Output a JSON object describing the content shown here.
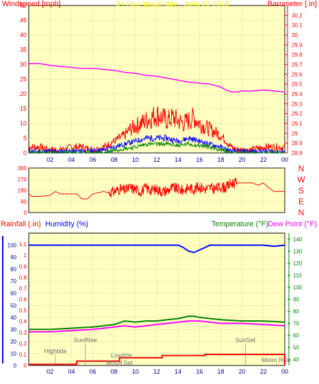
{
  "colors": {
    "plot_bg": "#ffffc0",
    "grid": "#808080",
    "wind_speed": "#ff0000",
    "wind_avg": "#0000ff",
    "wind_low": "#008000",
    "barometer": "#ff00ff",
    "direction": "#ff0000",
    "humidity": "#0000ff",
    "temperature": "#008000",
    "dewpoint": "#ff00ff",
    "rainfall": "#ff0000",
    "event_text": "#707070",
    "title_text": "#ffff00"
  },
  "header": {
    "windspeed_label": "Windspeed [mph]",
    "title": "24 hour graph day , June 20 2019",
    "barometer_label": "Barometer [.in]"
  },
  "compass": {
    "n1": "N",
    "w": "W",
    "s": "S",
    "e": "E",
    "n2": "N"
  },
  "bottom_header": {
    "rainfall_label": "Rainfall (.in)",
    "humidity_label": "Humidity (%)",
    "temperature_label": "Temperature (°F)",
    "dewpoint_label": "Dew Point (°F)"
  },
  "chart_data": [
    {
      "type": "line",
      "title": "24 hour graph day , June 20 2019",
      "ylabel": "Windspeed [mph]",
      "y2label": "Barometer [.in]",
      "ylim": [
        0,
        50
      ],
      "y2lim": [
        28.8,
        30.3
      ],
      "yticks": [
        "0",
        "5",
        "10",
        "15",
        "20",
        "25",
        "30",
        "35",
        "40",
        "45",
        "50"
      ],
      "y2ticks": [
        "28.8",
        "28.9",
        "29",
        "29.1",
        "29.2",
        "29.3",
        "29.4",
        "29.5",
        "29.6",
        "29.7",
        "29.8",
        "29.9",
        "30",
        "30.1",
        "30.2"
      ],
      "xticks": [
        "02",
        "04",
        "06",
        "08",
        "10",
        "12",
        "14",
        "16",
        "18",
        "20",
        "22",
        "00"
      ],
      "x_hours": [
        0,
        24
      ],
      "series": [
        {
          "name": "Barometer",
          "axis": "right",
          "x": [
            0,
            1,
            2,
            3,
            4,
            5,
            6,
            7,
            8,
            9,
            10,
            11,
            12,
            13,
            14,
            15,
            16,
            17,
            18,
            18.5,
            19,
            19.5,
            20,
            21,
            22,
            23,
            24
          ],
          "values": [
            29.71,
            29.71,
            29.69,
            29.68,
            29.67,
            29.66,
            29.66,
            29.65,
            29.64,
            29.62,
            29.61,
            29.59,
            29.58,
            29.56,
            29.54,
            29.52,
            29.51,
            29.5,
            29.47,
            29.44,
            29.42,
            29.42,
            29.43,
            29.43,
            29.44,
            29.43,
            29.42
          ]
        },
        {
          "name": "Wind speed",
          "x": [
            0,
            1,
            2,
            3,
            4,
            5,
            6,
            7,
            7.5,
            8,
            8.5,
            9,
            9.5,
            10,
            10.5,
            11,
            11.5,
            12,
            12.5,
            13,
            13.5,
            14,
            14.5,
            15,
            15.5,
            16,
            16.5,
            17,
            17.5,
            18,
            18.5,
            19,
            19.5,
            20,
            21,
            22,
            23,
            24
          ],
          "values": [
            2,
            2,
            1,
            1,
            2,
            2,
            1,
            2,
            3,
            4,
            5,
            6,
            8,
            9,
            10,
            11,
            12,
            13,
            12,
            11,
            12,
            11,
            10,
            11,
            12,
            10,
            9,
            8,
            7,
            6,
            4,
            2,
            1,
            1,
            1,
            2,
            2,
            2
          ]
        },
        {
          "name": "Wind average",
          "x": [
            0,
            4,
            7,
            8,
            9,
            10,
            11,
            12,
            13,
            14,
            15,
            16,
            17,
            18,
            19,
            20,
            24
          ],
          "values": [
            0.5,
            0.5,
            1,
            2,
            3,
            4,
            5,
            5,
            5,
            4,
            5,
            4,
            3,
            2,
            0.5,
            0.5,
            0.5
          ]
        },
        {
          "name": "Wind low",
          "x": [
            0,
            7,
            8,
            9,
            10,
            11,
            12,
            13,
            14,
            15,
            16,
            17,
            18,
            19,
            24
          ],
          "values": [
            0,
            0,
            1,
            1.5,
            2,
            3,
            3,
            3,
            2.5,
            3,
            2.5,
            2,
            1,
            0,
            0
          ]
        }
      ]
    },
    {
      "type": "line",
      "yticks": [
        "360",
        "270",
        "180",
        "90",
        "0"
      ],
      "ylim": [
        0,
        360
      ],
      "xticks": [
        "02",
        "04",
        "06",
        "08",
        "10",
        "12",
        "14",
        "16",
        "18",
        "20",
        "22",
        "00"
      ],
      "x_hours": [
        0,
        24
      ],
      "series": [
        {
          "name": "Wind direction",
          "x": [
            0,
            0.3,
            1,
            2,
            2.5,
            3,
            4,
            4.5,
            5,
            5.5,
            6,
            6.5,
            7,
            7.5,
            8,
            8.5,
            9,
            9.5,
            10,
            10.5,
            11,
            11.5,
            12,
            12.5,
            13,
            13.5,
            14,
            14.5,
            15,
            15.5,
            16,
            16.5,
            17,
            17.5,
            18,
            18.5,
            19,
            19.5,
            20,
            21,
            21.5,
            22,
            22.5,
            23,
            24
          ],
          "values": [
            150,
            130,
            130,
            140,
            170,
            150,
            150,
            150,
            110,
            110,
            150,
            160,
            170,
            160,
            170,
            190,
            180,
            200,
            190,
            170,
            200,
            180,
            190,
            170,
            180,
            200,
            190,
            180,
            200,
            190,
            210,
            190,
            200,
            190,
            210,
            200,
            240,
            240,
            240,
            240,
            220,
            240,
            200,
            170,
            170
          ]
        }
      ]
    },
    {
      "type": "line",
      "ylabel": "Rainfall (.in)",
      "y2label": "Humidity (%)",
      "y3label": "Temperature (°F)",
      "y4label": "Dew Point (°F)",
      "rain_ticks": [
        "0",
        "0.1",
        "0.2",
        "0.3",
        "0.4",
        "0.5",
        "0.6",
        "0.7",
        "0.8",
        "0.9",
        "1",
        "1.1"
      ],
      "humidity_ticks": [
        "0",
        "10",
        "20",
        "30",
        "40",
        "50",
        "60",
        "70",
        "80",
        "90",
        "100"
      ],
      "temp_ticks": [
        "40",
        "50",
        "60",
        "70",
        "80",
        "90",
        "100",
        "110",
        "120",
        "130",
        "140"
      ],
      "ylim_rain": [
        0,
        1.2
      ],
      "ylim_humidity": [
        0,
        110
      ],
      "ylim_temp": [
        35,
        145
      ],
      "xticks": [
        "02",
        "04",
        "06",
        "08",
        "10",
        "12",
        "14",
        "16",
        "18",
        "20",
        "22",
        "00"
      ],
      "x_hours": [
        0,
        24
      ],
      "series": [
        {
          "name": "Humidity (%)",
          "axis": "humidity",
          "x": [
            0,
            4,
            8,
            10,
            12,
            14,
            14.5,
            15,
            15.5,
            16,
            16.5,
            17,
            18,
            20,
            22,
            23,
            24
          ],
          "values": [
            100,
            100,
            100,
            100,
            100,
            100,
            98,
            95,
            94,
            96,
            98,
            100,
            100,
            100,
            100,
            99,
            100
          ]
        },
        {
          "name": "Temperature (°F)",
          "axis": "temp",
          "x": [
            0,
            2,
            4,
            6,
            7,
            8,
            9,
            10,
            11,
            12,
            13,
            14,
            15,
            15.5,
            16,
            17,
            18,
            20,
            22,
            24
          ],
          "values": [
            65,
            65,
            66,
            67,
            68,
            69,
            72,
            71,
            72,
            72,
            73,
            74,
            76,
            76,
            75,
            74,
            73,
            72,
            72,
            71
          ]
        },
        {
          "name": "Dew Point (°F)",
          "axis": "temp",
          "x": [
            0,
            2,
            4,
            6,
            7,
            8,
            9,
            10,
            11,
            12,
            13,
            14,
            15,
            15.5,
            16,
            17,
            18,
            20,
            22,
            24
          ],
          "values": [
            63,
            63,
            64,
            65,
            66,
            67,
            68,
            67,
            68,
            69,
            70,
            71,
            72,
            72,
            72,
            71,
            70,
            70,
            69,
            68
          ]
        },
        {
          "name": "Rainfall (.in)",
          "axis": "rain",
          "x": [
            0,
            4,
            4.5,
            8,
            8.5,
            12,
            12.5,
            16,
            16.5,
            23.9,
            24
          ],
          "values": [
            0.01,
            0.01,
            0.04,
            0.04,
            0.07,
            0.07,
            0.09,
            0.09,
            0.1,
            0.1,
            0
          ]
        }
      ],
      "annotations": [
        {
          "text": "Hightide",
          "x": 2.5,
          "y": 0.1
        },
        {
          "text": "SunRise",
          "x": 5.3,
          "y": 0.2
        },
        {
          "text": "Lowtide",
          "x": 8.7,
          "y": 0.06
        },
        {
          "text": "Moon Set",
          "x": 8.5,
          "y": -0.06
        },
        {
          "text": "SunSet",
          "x": 20.3,
          "y": 0.2
        },
        {
          "text": "Moon Rise",
          "x": 23.2,
          "y": 0.02
        }
      ]
    }
  ]
}
